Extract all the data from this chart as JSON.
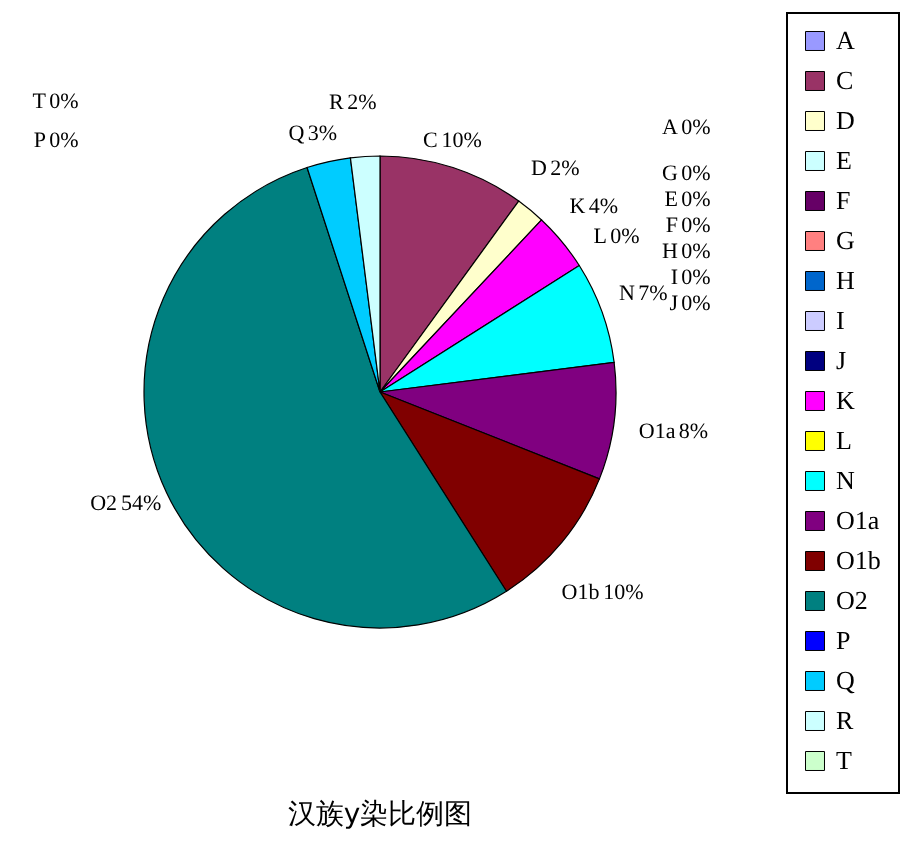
{
  "chart_data": {
    "type": "pie",
    "title": "汉族y染比例图",
    "categories": [
      "A",
      "C",
      "D",
      "E",
      "F",
      "G",
      "H",
      "I",
      "J",
      "K",
      "L",
      "N",
      "O1a",
      "O1b",
      "O2",
      "P",
      "Q",
      "R",
      "T"
    ],
    "values": [
      0,
      10,
      2,
      0,
      0,
      0,
      0,
      0,
      0,
      4,
      0,
      7,
      8,
      10,
      54,
      0,
      3,
      2,
      0
    ],
    "colors": [
      "#9999ff",
      "#993366",
      "#ffffcc",
      "#ccffff",
      "#660066",
      "#ff8080",
      "#0066cc",
      "#ccccff",
      "#000080",
      "#ff00ff",
      "#ffff00",
      "#00ffff",
      "#800080",
      "#800000",
      "#008080",
      "#0000ff",
      "#00ccff",
      "#ccffff",
      "#ccffcc"
    ],
    "value_labels": [
      "0%",
      "10%",
      "2%",
      "0%",
      "0%",
      "0%",
      "0%",
      "0%",
      "0%",
      "4%",
      "0%",
      "7%",
      "8%",
      "10%",
      "54%",
      "0%",
      "3%",
      "2%",
      "0%"
    ],
    "legend": "right"
  }
}
